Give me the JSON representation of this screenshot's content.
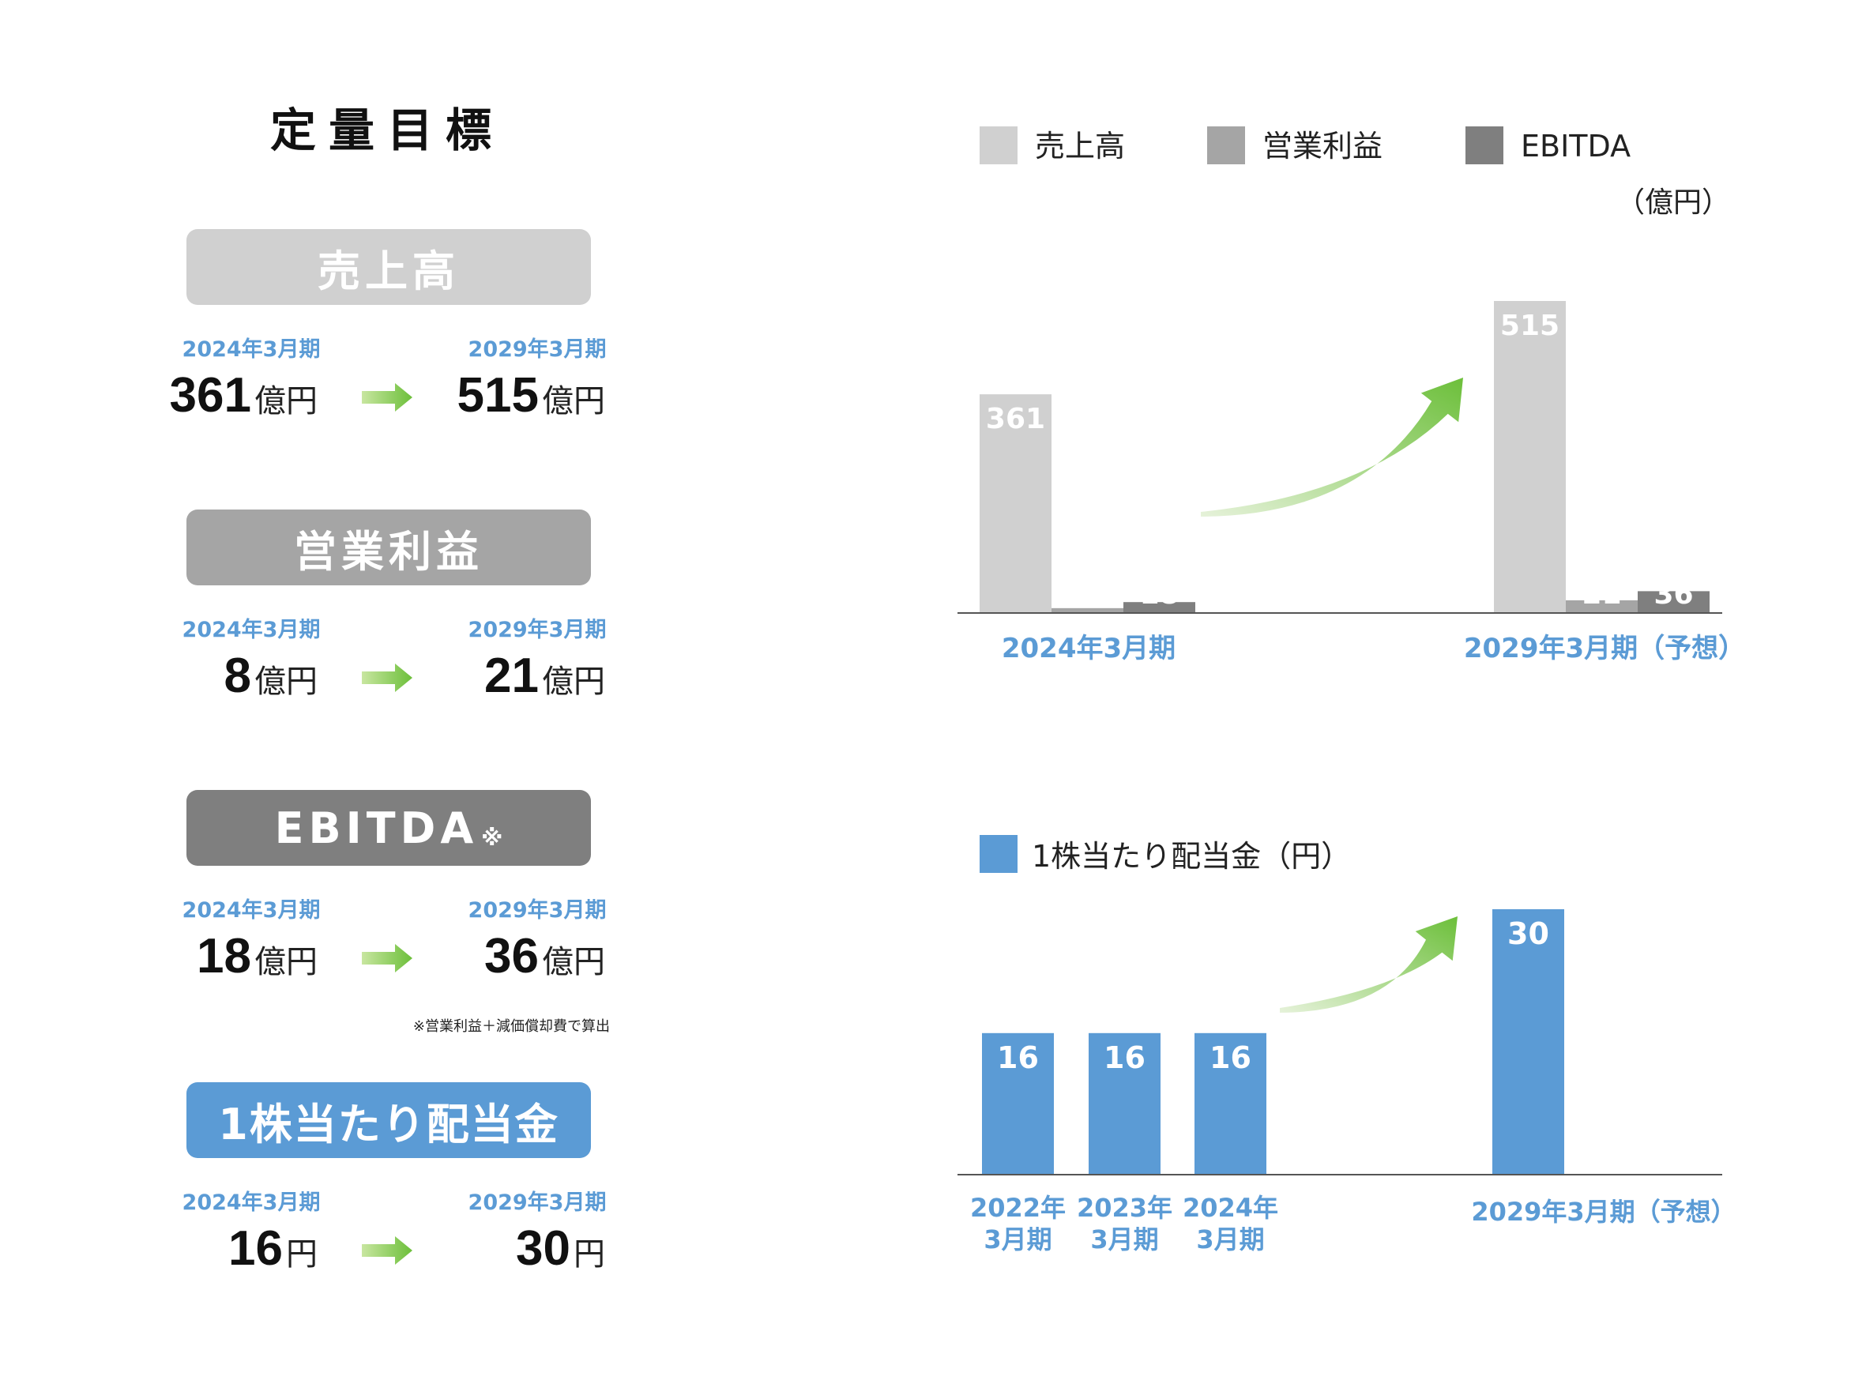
{
  "page": {
    "title": "定量目標"
  },
  "kpis": [
    {
      "label": "売上高",
      "mark": "",
      "color": "#d0d0d0",
      "from_period": "2024年3月期",
      "to_period": "2029年3月期",
      "from_value": "361",
      "to_value": "515",
      "unit": "億円"
    },
    {
      "label": "営業利益",
      "mark": "",
      "color": "#a5a5a5",
      "from_period": "2024年3月期",
      "to_period": "2029年3月期",
      "from_value": "8",
      "to_value": "21",
      "unit": "億円"
    },
    {
      "label": "EBITDA",
      "mark": "※",
      "color": "#7f7f7f",
      "from_period": "2024年3月期",
      "to_period": "2029年3月期",
      "from_value": "18",
      "to_value": "36",
      "unit": "億円"
    },
    {
      "label": "1株当たり配当金",
      "mark": "",
      "color": "#5b9bd5",
      "from_period": "2024年3月期",
      "to_period": "2029年3月期",
      "from_value": "16",
      "to_value": "30",
      "unit": "円"
    }
  ],
  "ebitda_note": "※営業利益＋減価償却費で算出",
  "colors": {
    "accent_blue": "#5b9bd5",
    "arrow_green": "#7cc44e"
  },
  "chart_data": [
    {
      "type": "bar",
      "categories": [
        "2024年3月期",
        "2029年3月期（予想）"
      ],
      "series": [
        {
          "name": "売上高",
          "values": [
            361,
            515
          ],
          "color": "#d0d0d0"
        },
        {
          "name": "営業利益",
          "values": [
            8,
            21
          ],
          "color": "#a5a5a5"
        },
        {
          "name": "EBITDA",
          "values": [
            18,
            36
          ],
          "color": "#7f7f7f"
        }
      ],
      "unit_label": "（億円）",
      "ylim": [
        0,
        515
      ],
      "legend": "top",
      "grid": false
    },
    {
      "type": "bar",
      "categories": [
        "2022年\n3月期",
        "2023年\n3月期",
        "2024年\n3月期",
        "2029年3月期（予想）"
      ],
      "series": [
        {
          "name": "1株当たり配当金（円）",
          "values": [
            16,
            16,
            16,
            30
          ],
          "color": "#5b9bd5"
        }
      ],
      "ylim": [
        0,
        30
      ],
      "legend": "top-left",
      "grid": false
    }
  ]
}
